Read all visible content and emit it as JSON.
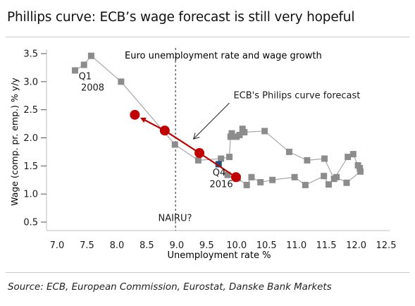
{
  "header": {
    "title": "Phillips curve: ECB’s wage forecast is still very hopeful",
    "source": "Source: ECB, European Commission, Eurostat, Danske Bank Markets"
  },
  "colors": {
    "observed": "#8c8c8c",
    "observed_line": "#a6a6a6",
    "forecast": "#c00000",
    "latest": "#1f4e79"
  },
  "chart_data": {
    "type": "scatter",
    "title": "Euro unemployment rate and wage growth",
    "xlabel": "Unemployment rate %",
    "ylabel": "Wage (comp. pr. emp.) % y/y",
    "xlim": [
      7.0,
      12.5
    ],
    "ylim": [
      0.5,
      3.5
    ],
    "xticks": [
      "7.0",
      "7.5",
      "8.0",
      "8.5",
      "9.0",
      "9.5",
      "10.0",
      "10.5",
      "11.0",
      "11.5",
      "12.0",
      "12.5"
    ],
    "yticks": [
      "0.5",
      "1.0",
      "1.5",
      "2.0",
      "2.5",
      "3.0",
      "3.5"
    ],
    "grid": false,
    "series": [
      {
        "values": [
          [
            7.3,
            3.2
          ],
          [
            7.45,
            3.3
          ],
          [
            7.57,
            3.46
          ],
          [
            8.07,
            3.0
          ],
          [
            8.97,
            1.88
          ],
          [
            9.36,
            1.6
          ],
          [
            9.74,
            1.63
          ],
          [
            9.88,
            1.66
          ],
          [
            9.9,
            2.02
          ],
          [
            9.92,
            2.08
          ],
          [
            10.0,
            2.02
          ],
          [
            10.05,
            2.05
          ],
          [
            10.1,
            2.16
          ],
          [
            10.13,
            2.1
          ],
          [
            10.47,
            2.12
          ],
          [
            10.88,
            1.75
          ],
          [
            11.18,
            1.6
          ],
          [
            11.47,
            1.63
          ],
          [
            11.63,
            1.27
          ],
          [
            11.86,
            1.66
          ],
          [
            11.95,
            1.71
          ],
          [
            12.03,
            1.51
          ],
          [
            12.06,
            1.46
          ],
          [
            12.07,
            1.4
          ],
          [
            11.84,
            1.2
          ],
          [
            11.67,
            1.3
          ],
          [
            11.54,
            1.17
          ],
          [
            11.46,
            1.32
          ],
          [
            11.15,
            1.16
          ],
          [
            10.97,
            1.3
          ],
          [
            10.6,
            1.25
          ],
          [
            10.4,
            1.21
          ],
          [
            10.25,
            1.3
          ],
          [
            10.17,
            1.16
          ],
          [
            10.02,
            1.28
          ],
          [
            9.85,
            1.34
          ],
          [
            9.7,
            1.53
          ]
        ]
      },
      {
        "name": "ECB's Philips curve forecast",
        "values": [
          [
            9.99,
            1.3
          ],
          [
            9.38,
            1.73
          ],
          [
            8.8,
            2.13
          ],
          [
            8.3,
            2.41
          ]
        ]
      }
    ],
    "annotations": [
      {
        "text": "Q1",
        "x": 7.36,
        "y": 3.04
      },
      {
        "text": "2008",
        "x": 7.4,
        "y": 2.84
      },
      {
        "text": "Q4",
        "x": 9.6,
        "y": 1.33
      },
      {
        "text": "2016",
        "x": 9.55,
        "y": 1.12
      },
      {
        "text": "NAIRU?",
        "x": 8.69,
        "y": 0.52
      },
      {
        "text": "ECB's Philips curve forecast",
        "x": 9.95,
        "y": 2.7
      }
    ],
    "nairu_x": 8.98
  }
}
